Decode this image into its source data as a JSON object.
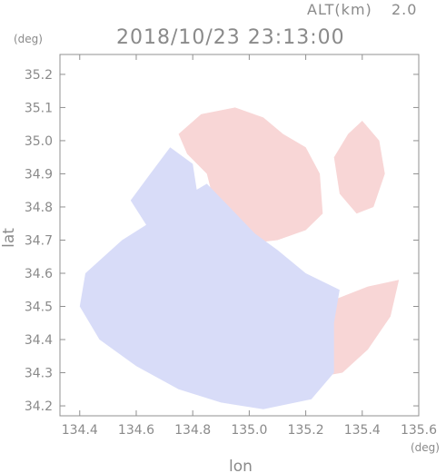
{
  "chart_data": {
    "type": "heatmap",
    "title": "2018/10/23 23:13:00",
    "altitude_label": "ALT(km)",
    "altitude_value": "2.0",
    "xlabel": "lon",
    "ylabel": "lat",
    "x_unit": "(deg)",
    "y_unit": "(deg)",
    "xlim": [
      134.33,
      135.6
    ],
    "ylim": [
      34.17,
      35.26
    ],
    "x_ticks": [
      "134.4",
      "134.6",
      "134.8",
      "135.0",
      "135.2",
      "135.4",
      "135.6"
    ],
    "x_tick_values": [
      134.4,
      134.6,
      134.8,
      135.0,
      135.2,
      135.4,
      135.6
    ],
    "y_ticks": [
      "35.2",
      "35.1",
      "35.0",
      "34.9",
      "34.8",
      "34.7",
      "34.6",
      "34.5",
      "34.4",
      "34.3",
      "34.2"
    ],
    "y_tick_values": [
      35.2,
      35.1,
      35.0,
      34.9,
      34.8,
      34.7,
      34.6,
      34.5,
      34.4,
      34.3,
      34.2
    ],
    "colors": {
      "negative": "#d8dcf8",
      "positive": "#f8d6d6",
      "axis": "#909090",
      "text": "#8a8a8a"
    },
    "regions": [
      {
        "name": "northern-positive-echo",
        "sign": "positive",
        "points": [
          [
            134.75,
            35.02
          ],
          [
            134.83,
            35.08
          ],
          [
            134.95,
            35.1
          ],
          [
            135.05,
            35.07
          ],
          [
            135.12,
            35.02
          ],
          [
            135.2,
            34.98
          ],
          [
            135.25,
            34.9
          ],
          [
            135.26,
            34.78
          ],
          [
            135.2,
            34.73
          ],
          [
            135.1,
            34.7
          ],
          [
            135.0,
            34.69
          ],
          [
            134.92,
            34.73
          ],
          [
            134.88,
            34.8
          ],
          [
            134.85,
            34.9
          ],
          [
            134.78,
            34.96
          ]
        ]
      },
      {
        "name": "northeast-positive-echo",
        "sign": "positive",
        "points": [
          [
            135.3,
            34.95
          ],
          [
            135.35,
            35.02
          ],
          [
            135.4,
            35.06
          ],
          [
            135.46,
            35.0
          ],
          [
            135.48,
            34.9
          ],
          [
            135.44,
            34.8
          ],
          [
            135.38,
            34.78
          ],
          [
            135.32,
            34.84
          ]
        ]
      },
      {
        "name": "southeast-positive-echo",
        "sign": "positive",
        "points": [
          [
            135.18,
            34.45
          ],
          [
            135.3,
            34.52
          ],
          [
            135.42,
            34.56
          ],
          [
            135.53,
            34.58
          ],
          [
            135.5,
            34.47
          ],
          [
            135.42,
            34.37
          ],
          [
            135.33,
            34.3
          ],
          [
            135.2,
            34.28
          ],
          [
            135.16,
            34.36
          ]
        ]
      },
      {
        "name": "central-negative-echo",
        "sign": "negative",
        "points": [
          [
            134.42,
            34.6
          ],
          [
            134.55,
            34.7
          ],
          [
            134.68,
            34.77
          ],
          [
            134.77,
            34.83
          ],
          [
            134.85,
            34.87
          ],
          [
            134.93,
            34.8
          ],
          [
            135.02,
            34.72
          ],
          [
            135.1,
            34.67
          ],
          [
            135.2,
            34.6
          ],
          [
            135.32,
            34.55
          ],
          [
            135.3,
            34.45
          ],
          [
            135.3,
            34.3
          ],
          [
            135.22,
            34.22
          ],
          [
            135.05,
            34.19
          ],
          [
            134.9,
            34.21
          ],
          [
            134.75,
            34.25
          ],
          [
            134.6,
            34.32
          ],
          [
            134.47,
            34.4
          ],
          [
            134.4,
            34.5
          ]
        ]
      },
      {
        "name": "west-negative-echo",
        "sign": "negative",
        "points": [
          [
            134.58,
            34.82
          ],
          [
            134.65,
            34.9
          ],
          [
            134.72,
            34.98
          ],
          [
            134.8,
            34.93
          ],
          [
            134.82,
            34.82
          ],
          [
            134.74,
            34.76
          ],
          [
            134.64,
            34.74
          ]
        ]
      }
    ]
  }
}
